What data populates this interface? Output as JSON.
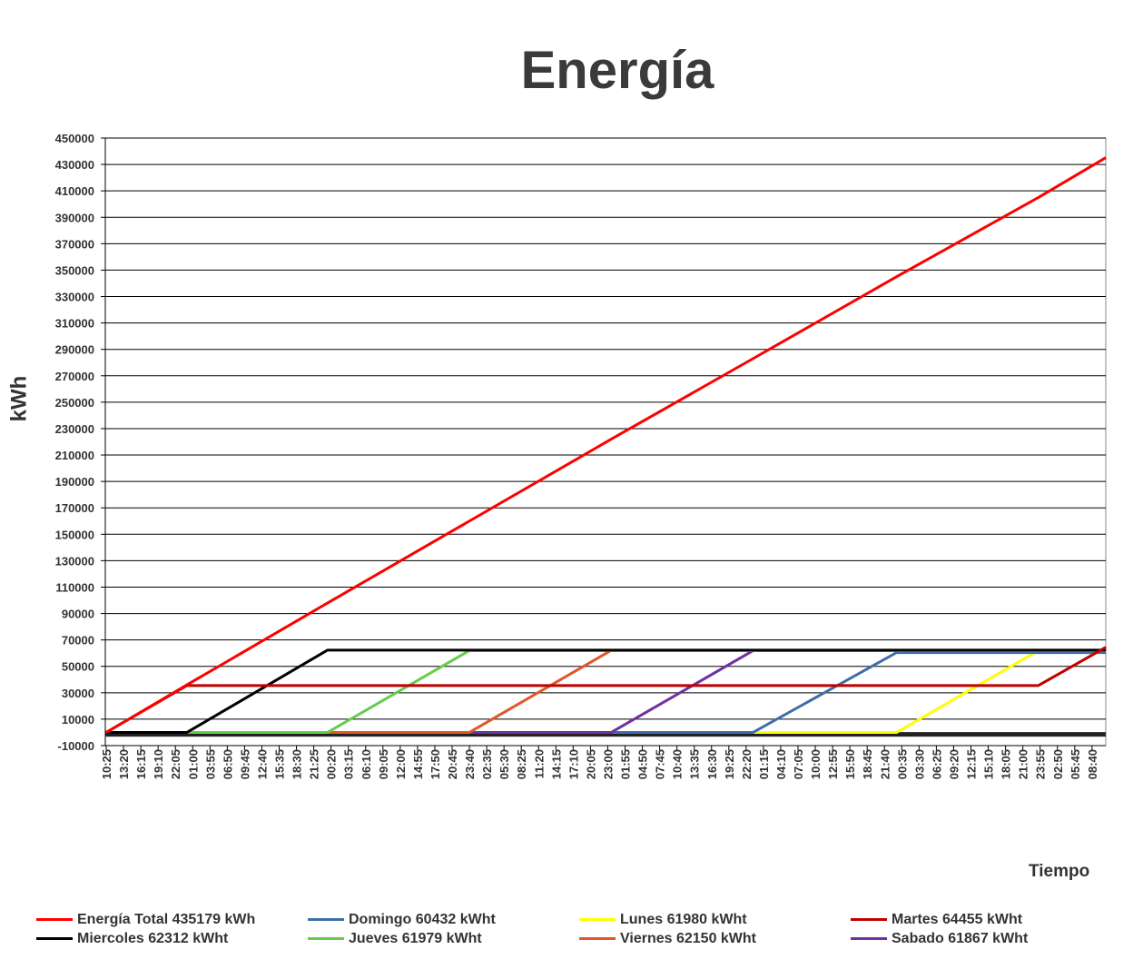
{
  "chart_data": {
    "type": "line",
    "title": "Energía",
    "ylabel": "kWh",
    "xlabel": "Tiempo",
    "ylim": [
      -10000,
      450000
    ],
    "yticks": [
      -10000,
      10000,
      30000,
      50000,
      70000,
      90000,
      110000,
      130000,
      150000,
      170000,
      190000,
      210000,
      230000,
      250000,
      270000,
      290000,
      310000,
      330000,
      350000,
      370000,
      390000,
      410000,
      430000,
      450000
    ],
    "grid": true,
    "legend_position": "bottom",
    "x_tick_labels": [
      "10:25",
      "13:20",
      "16:15",
      "19:10",
      "22:05",
      "01:00",
      "03:55",
      "06:50",
      "09:45",
      "12:40",
      "15:35",
      "18:30",
      "21:25",
      "00:20",
      "03:15",
      "06:10",
      "09:05",
      "12:00",
      "14:55",
      "17:50",
      "20:45",
      "23:40",
      "02:35",
      "05:30",
      "08:25",
      "11:20",
      "14:15",
      "17:10",
      "20:05",
      "23:00",
      "01:55",
      "04:50",
      "07:45",
      "10:40",
      "13:35",
      "16:30",
      "19:25",
      "22:20",
      "01:15",
      "04:10",
      "07:05",
      "10:00",
      "12:55",
      "15:50",
      "18:45",
      "21:40",
      "00:35",
      "03:30",
      "06:25",
      "09:20",
      "12:15",
      "15:10",
      "18:05",
      "21:00",
      "23:55",
      "02:50",
      "05:45",
      "08:40"
    ],
    "x_range_tick_index": [
      0,
      57.8
    ],
    "series": [
      {
        "name": "Energía Total 435179 kWh",
        "color": "#ff0000",
        "points": [
          [
            0,
            0
          ],
          [
            4.67,
            36000
          ],
          [
            12.8,
            98000
          ],
          [
            21,
            160000
          ],
          [
            29.2,
            222000
          ],
          [
            37.4,
            283000
          ],
          [
            45.7,
            345000
          ],
          [
            53.9,
            405000
          ],
          [
            57.8,
            435179
          ]
        ]
      },
      {
        "name": "Domingo 60432 kWht",
        "color": "#3f6fa8",
        "points": [
          [
            0,
            0
          ],
          [
            37.4,
            0
          ],
          [
            45.7,
            60432
          ],
          [
            57.8,
            60432
          ]
        ]
      },
      {
        "name": "Lunes 61980 kWht",
        "color": "#ffff00",
        "points": [
          [
            29.2,
            0
          ],
          [
            45.7,
            0
          ],
          [
            53.9,
            61980
          ],
          [
            57.8,
            61980
          ]
        ]
      },
      {
        "name": "Martes 64455 kWht",
        "color": "#c00000",
        "points": [
          [
            0,
            0
          ],
          [
            4.67,
            35500
          ],
          [
            53.9,
            35500
          ],
          [
            57.8,
            64455
          ]
        ]
      },
      {
        "name": "Miercoles 62312 kWht",
        "color": "#000000",
        "points": [
          [
            0,
            0
          ],
          [
            4.67,
            0
          ],
          [
            12.8,
            62312
          ],
          [
            57.8,
            62312
          ]
        ]
      },
      {
        "name": "Jueves 61979 kWht",
        "color": "#66cc4c",
        "points": [
          [
            0,
            0
          ],
          [
            12.8,
            0
          ],
          [
            21,
            61979
          ],
          [
            57.8,
            61979
          ]
        ]
      },
      {
        "name": "Viernes 62150 kWht",
        "color": "#e0582a",
        "points": [
          [
            0,
            0
          ],
          [
            21,
            0
          ],
          [
            29.2,
            62150
          ],
          [
            57.8,
            62150
          ]
        ]
      },
      {
        "name": "Sabado 61867 kWht",
        "color": "#7030a0",
        "points": [
          [
            0,
            0
          ],
          [
            29.2,
            0
          ],
          [
            37.4,
            61867
          ],
          [
            57.8,
            61867
          ]
        ]
      }
    ]
  }
}
